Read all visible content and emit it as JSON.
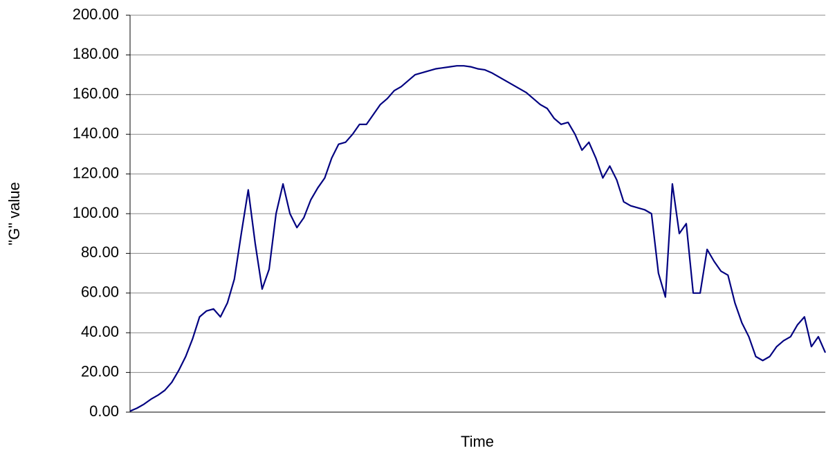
{
  "chart_data": {
    "type": "line",
    "y_label": "\"G\" value",
    "x_label": "Time",
    "categories": [
      null,
      null,
      null,
      null,
      null,
      null,
      null,
      null,
      null,
      null,
      null,
      null,
      null,
      null,
      null,
      null,
      null,
      null,
      null,
      null,
      null,
      null,
      null,
      null,
      null,
      null,
      null,
      null,
      null,
      null,
      null,
      null,
      null,
      null,
      null,
      null,
      null,
      null,
      null,
      null,
      null,
      null,
      null,
      null,
      null,
      null,
      null,
      null,
      null,
      null,
      null,
      null,
      null,
      null,
      null,
      null,
      null,
      null,
      null,
      null,
      null,
      null,
      null,
      null,
      null,
      null,
      null,
      null,
      null,
      null,
      null,
      null,
      null,
      null,
      null,
      null,
      null,
      null,
      null,
      null,
      null,
      null,
      null,
      null,
      null,
      null,
      null,
      null,
      null,
      null,
      null,
      null,
      null,
      null,
      null,
      null,
      null,
      null,
      null,
      null,
      null
    ],
    "series": [
      {
        "color": "#000080",
        "values": [
          0.5,
          2,
          4,
          6.5,
          8.5,
          11,
          15,
          21,
          28,
          37,
          48,
          51,
          52,
          48,
          55,
          67,
          90,
          112,
          85,
          62,
          72,
          100,
          115,
          100,
          93,
          98,
          107,
          113,
          118,
          128,
          135,
          136,
          140,
          145,
          145,
          150,
          155,
          158,
          162,
          164,
          167,
          170,
          171,
          172,
          173,
          173.5,
          174,
          174.5,
          174.5,
          174,
          173,
          172.5,
          171,
          169,
          167,
          165,
          163,
          161,
          158,
          155,
          153,
          148,
          145,
          146,
          140,
          132,
          136,
          128,
          118,
          124,
          117,
          106,
          104,
          103,
          102,
          100,
          70,
          58,
          115,
          90,
          95,
          60,
          60,
          82,
          76,
          71,
          69,
          55,
          45,
          38,
          28,
          26,
          28,
          33,
          36,
          38,
          44,
          48,
          33,
          38,
          30
        ]
      }
    ],
    "ylim": [
      0,
      200
    ],
    "yticks": [
      {
        "value": 0,
        "label": "0.00"
      },
      {
        "value": 20,
        "label": "20.00"
      },
      {
        "value": 40,
        "label": "40.00"
      },
      {
        "value": 60,
        "label": "60.00"
      },
      {
        "value": 80,
        "label": "80.00"
      },
      {
        "value": 100,
        "label": "100.00"
      },
      {
        "value": 120,
        "label": "120.00"
      },
      {
        "value": 140,
        "label": "140.00"
      },
      {
        "value": 160,
        "label": "160.00"
      },
      {
        "value": 180,
        "label": "180.00"
      },
      {
        "value": 200,
        "label": "200.00"
      }
    ],
    "grid": true
  }
}
